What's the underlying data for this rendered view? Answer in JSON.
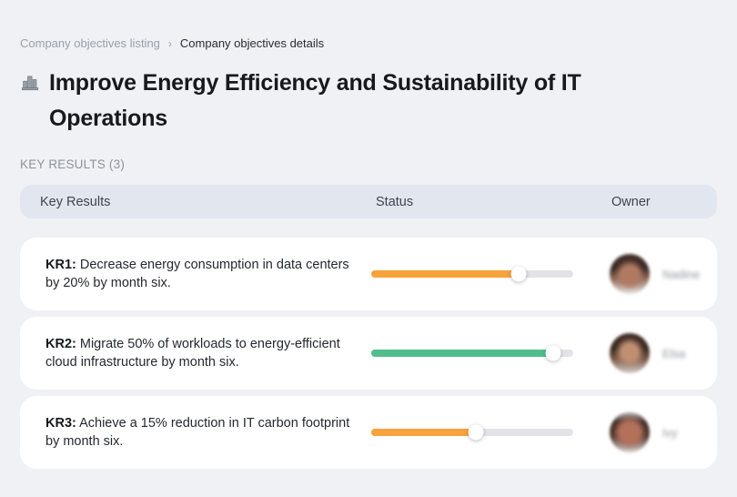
{
  "breadcrumb": {
    "items": [
      {
        "label": "Company objectives listing"
      },
      {
        "label": "Company objectives details"
      }
    ],
    "separator": "›"
  },
  "header": {
    "icon": "buildings-icon",
    "title": "Improve Energy Efficiency and Sustainability of IT Operations"
  },
  "section": {
    "label": "KEY RESULTS (3)"
  },
  "table": {
    "columns": {
      "key_results": "Key Results",
      "status": "Status",
      "owner": "Owner"
    },
    "rows": [
      {
        "kr_label": "KR1:",
        "kr_text": "Decrease energy consumption in data centers by 20% by month six.",
        "progress_percent": 73,
        "progress_color": "#F7A23B",
        "owner_name": "Nadine"
      },
      {
        "kr_label": "KR2:",
        "kr_text": "Migrate 50% of workloads to energy-efficient cloud infrastructure by month six.",
        "progress_percent": 90,
        "progress_color": "#50BD8D",
        "owner_name": "Elsa"
      },
      {
        "kr_label": "KR3:",
        "kr_text": "Achieve a 15% reduction in IT carbon footprint by month six.",
        "progress_percent": 52,
        "progress_color": "#F7A23B",
        "owner_name": "Ivy"
      }
    ]
  },
  "colors": {
    "page_background": "#eff1f5",
    "card_background": "#ffffff",
    "table_header_background": "#e2e6ee",
    "progress_track": "#e3e3e7",
    "progress_orange": "#F7A23B",
    "progress_green": "#50BD8D"
  }
}
